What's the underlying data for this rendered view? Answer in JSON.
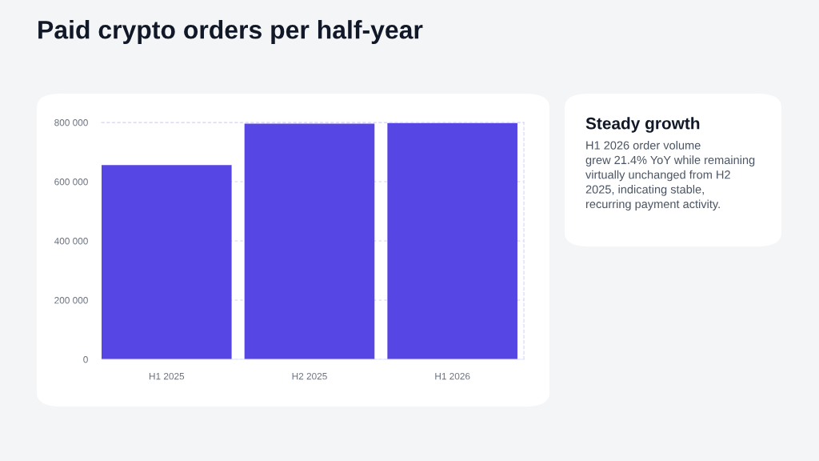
{
  "chart_data": [
    {
      "type": "bar",
      "title": "Paid crypto orders per half-year",
      "categories": [
        "H1 2025",
        "H2 2025",
        "H1 2026"
      ],
      "values": [
        656000,
        796000,
        798000
      ],
      "color": "#5646e3",
      "ylim": [
        0,
        800000
      ],
      "yticks": [
        {
          "value": 0,
          "label": "0"
        },
        {
          "value": 200000,
          "label": "200 000"
        },
        {
          "value": 400000,
          "label": "400 000"
        },
        {
          "value": 600000,
          "label": "600 000"
        },
        {
          "value": 800000,
          "label": "800 000"
        }
      ],
      "grid": "y",
      "legend": false
    },
    {
      "type": "other",
      "title": "Steady growth",
      "annotations": [
        "H1 2026 order volume\ngrew 21.4% YoY while remaining\nvirtually unchanged from H2\n2025, indicating stable,\nrecurring payment activity."
      ]
    }
  ]
}
